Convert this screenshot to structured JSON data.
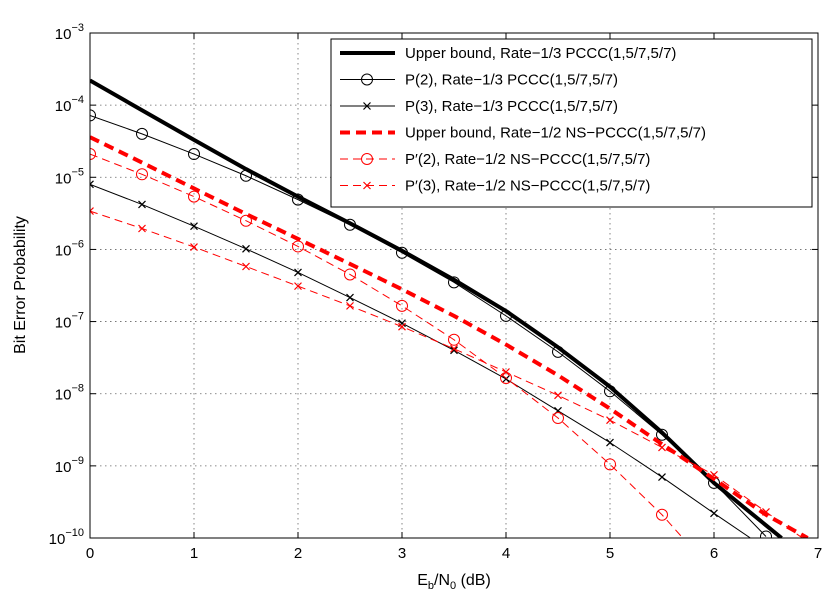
{
  "chart_data": {
    "type": "line",
    "title": "",
    "xlabel": {
      "base": "E",
      "sub1": "b",
      "slash": "/N",
      "sub2": "0",
      "unit": " (dB)"
    },
    "ylabel": "Bit Error Probability",
    "xlim": [
      0,
      7
    ],
    "ylim": [
      1e-10,
      0.001
    ],
    "yscale": "log",
    "grid": true,
    "legend_position": "top-right",
    "x_ticks": [
      {
        "value": 0,
        "label": "0"
      },
      {
        "value": 1,
        "label": "1"
      },
      {
        "value": 2,
        "label": "2"
      },
      {
        "value": 3,
        "label": "3"
      },
      {
        "value": 4,
        "label": "4"
      },
      {
        "value": 5,
        "label": "5"
      },
      {
        "value": 6,
        "label": "6"
      },
      {
        "value": 7,
        "label": "7"
      }
    ],
    "y_ticks": [
      {
        "value": 1e-10,
        "base": "10",
        "exp": "−10"
      },
      {
        "value": 1e-09,
        "base": "10",
        "exp": "−9"
      },
      {
        "value": 1e-08,
        "base": "10",
        "exp": "−8"
      },
      {
        "value": 1e-07,
        "base": "10",
        "exp": "−7"
      },
      {
        "value": 1e-06,
        "base": "10",
        "exp": "−6"
      },
      {
        "value": 1e-05,
        "base": "10",
        "exp": "−5"
      },
      {
        "value": 0.0001,
        "base": "10",
        "exp": "−4"
      },
      {
        "value": 0.001,
        "base": "10",
        "exp": "−3"
      }
    ],
    "series": [
      {
        "name": "Upper bound, Rate−1/3 PCCC(1,5/7,5/7)",
        "color": "#000000",
        "style": "solid",
        "width": 4,
        "marker": "none",
        "x": [
          0,
          0.5,
          1,
          1.5,
          2,
          2.5,
          3,
          3.5,
          4,
          4.5,
          5,
          5.5,
          6,
          6.5,
          6.65
        ],
        "y": [
          0.00022,
          8.5e-05,
          3.3e-05,
          1.3e-05,
          5.4e-06,
          2.3e-06,
          9.6e-07,
          3.8e-07,
          1.4e-07,
          4.4e-08,
          1.25e-08,
          2.9e-09,
          5.8e-10,
          1.5e-10,
          1e-10
        ]
      },
      {
        "name": "P(2), Rate−1/3 PCCC(1,5/7,5/7)",
        "color": "#000000",
        "style": "solid",
        "width": 1,
        "marker": "circle",
        "x": [
          0,
          0.5,
          1,
          1.5,
          2,
          2.5,
          3,
          3.5,
          4,
          4.5,
          5,
          5.5,
          6,
          6.5
        ],
        "y": [
          7.2e-05,
          4e-05,
          2.1e-05,
          1.05e-05,
          4.9e-06,
          2.2e-06,
          9e-07,
          3.5e-07,
          1.2e-07,
          3.8e-08,
          1.08e-08,
          2.7e-09,
          5.8e-10,
          1.05e-10
        ]
      },
      {
        "name": "P(3), Rate−1/3 PCCC(1,5/7,5/7)",
        "color": "#000000",
        "style": "solid",
        "width": 1,
        "marker": "x",
        "x": [
          0,
          0.5,
          1,
          1.5,
          2,
          2.5,
          3,
          3.5,
          4,
          4.5,
          5,
          5.5,
          6,
          6.35
        ],
        "y": [
          8e-06,
          4.2e-06,
          2.1e-06,
          1.02e-06,
          4.8e-07,
          2.15e-07,
          9.5e-08,
          4e-08,
          1.6e-08,
          5.8e-09,
          2.1e-09,
          7e-10,
          2.2e-10,
          1e-10
        ]
      },
      {
        "name": "Upper bound, Rate−1/2 NS−PCCC(1,5/7,5/7)",
        "color": "#ff0000",
        "style": "dashed",
        "width": 4,
        "marker": "none",
        "x": [
          0,
          0.5,
          1,
          1.5,
          2,
          2.5,
          3,
          3.5,
          4,
          4.5,
          5,
          5.5,
          6,
          6.5,
          6.9
        ],
        "y": [
          3.6e-05,
          1.6e-05,
          7e-06,
          3.1e-06,
          1.4e-06,
          6.3e-07,
          2.8e-07,
          1.2e-07,
          4.8e-08,
          1.8e-08,
          6.2e-09,
          2e-09,
          6.6e-10,
          2.1e-10,
          1e-10
        ]
      },
      {
        "name": "P′(2), Rate−1/2 NS−PCCC(1,5/7,5/7)",
        "color": "#ff0000",
        "style": "dashed",
        "width": 1,
        "marker": "circle",
        "x": [
          0,
          0.5,
          1,
          1.5,
          2,
          2.5,
          3,
          3.5,
          4,
          4.5,
          5,
          5.5,
          5.7
        ],
        "y": [
          2.1e-05,
          1.1e-05,
          5.4e-06,
          2.5e-06,
          1.1e-06,
          4.5e-07,
          1.65e-07,
          5.6e-08,
          1.65e-08,
          4.6e-09,
          1.05e-09,
          2.1e-10,
          1e-10
        ]
      },
      {
        "name": "P′(3), Rate−1/2 NS−PCCC(1,5/7,5/7)",
        "color": "#ff0000",
        "style": "dashed",
        "width": 1,
        "marker": "x",
        "x": [
          0,
          0.5,
          1,
          1.5,
          2,
          2.5,
          3,
          3.5,
          4,
          4.5,
          5,
          5.5,
          6,
          6.5,
          6.85
        ],
        "y": [
          3.4e-06,
          1.95e-06,
          1.08e-06,
          5.8e-07,
          3.1e-07,
          1.65e-07,
          8.5e-08,
          4.2e-08,
          2e-08,
          9.5e-09,
          4.3e-09,
          1.8e-09,
          7.5e-10,
          2.3e-10,
          1e-10
        ]
      }
    ]
  }
}
